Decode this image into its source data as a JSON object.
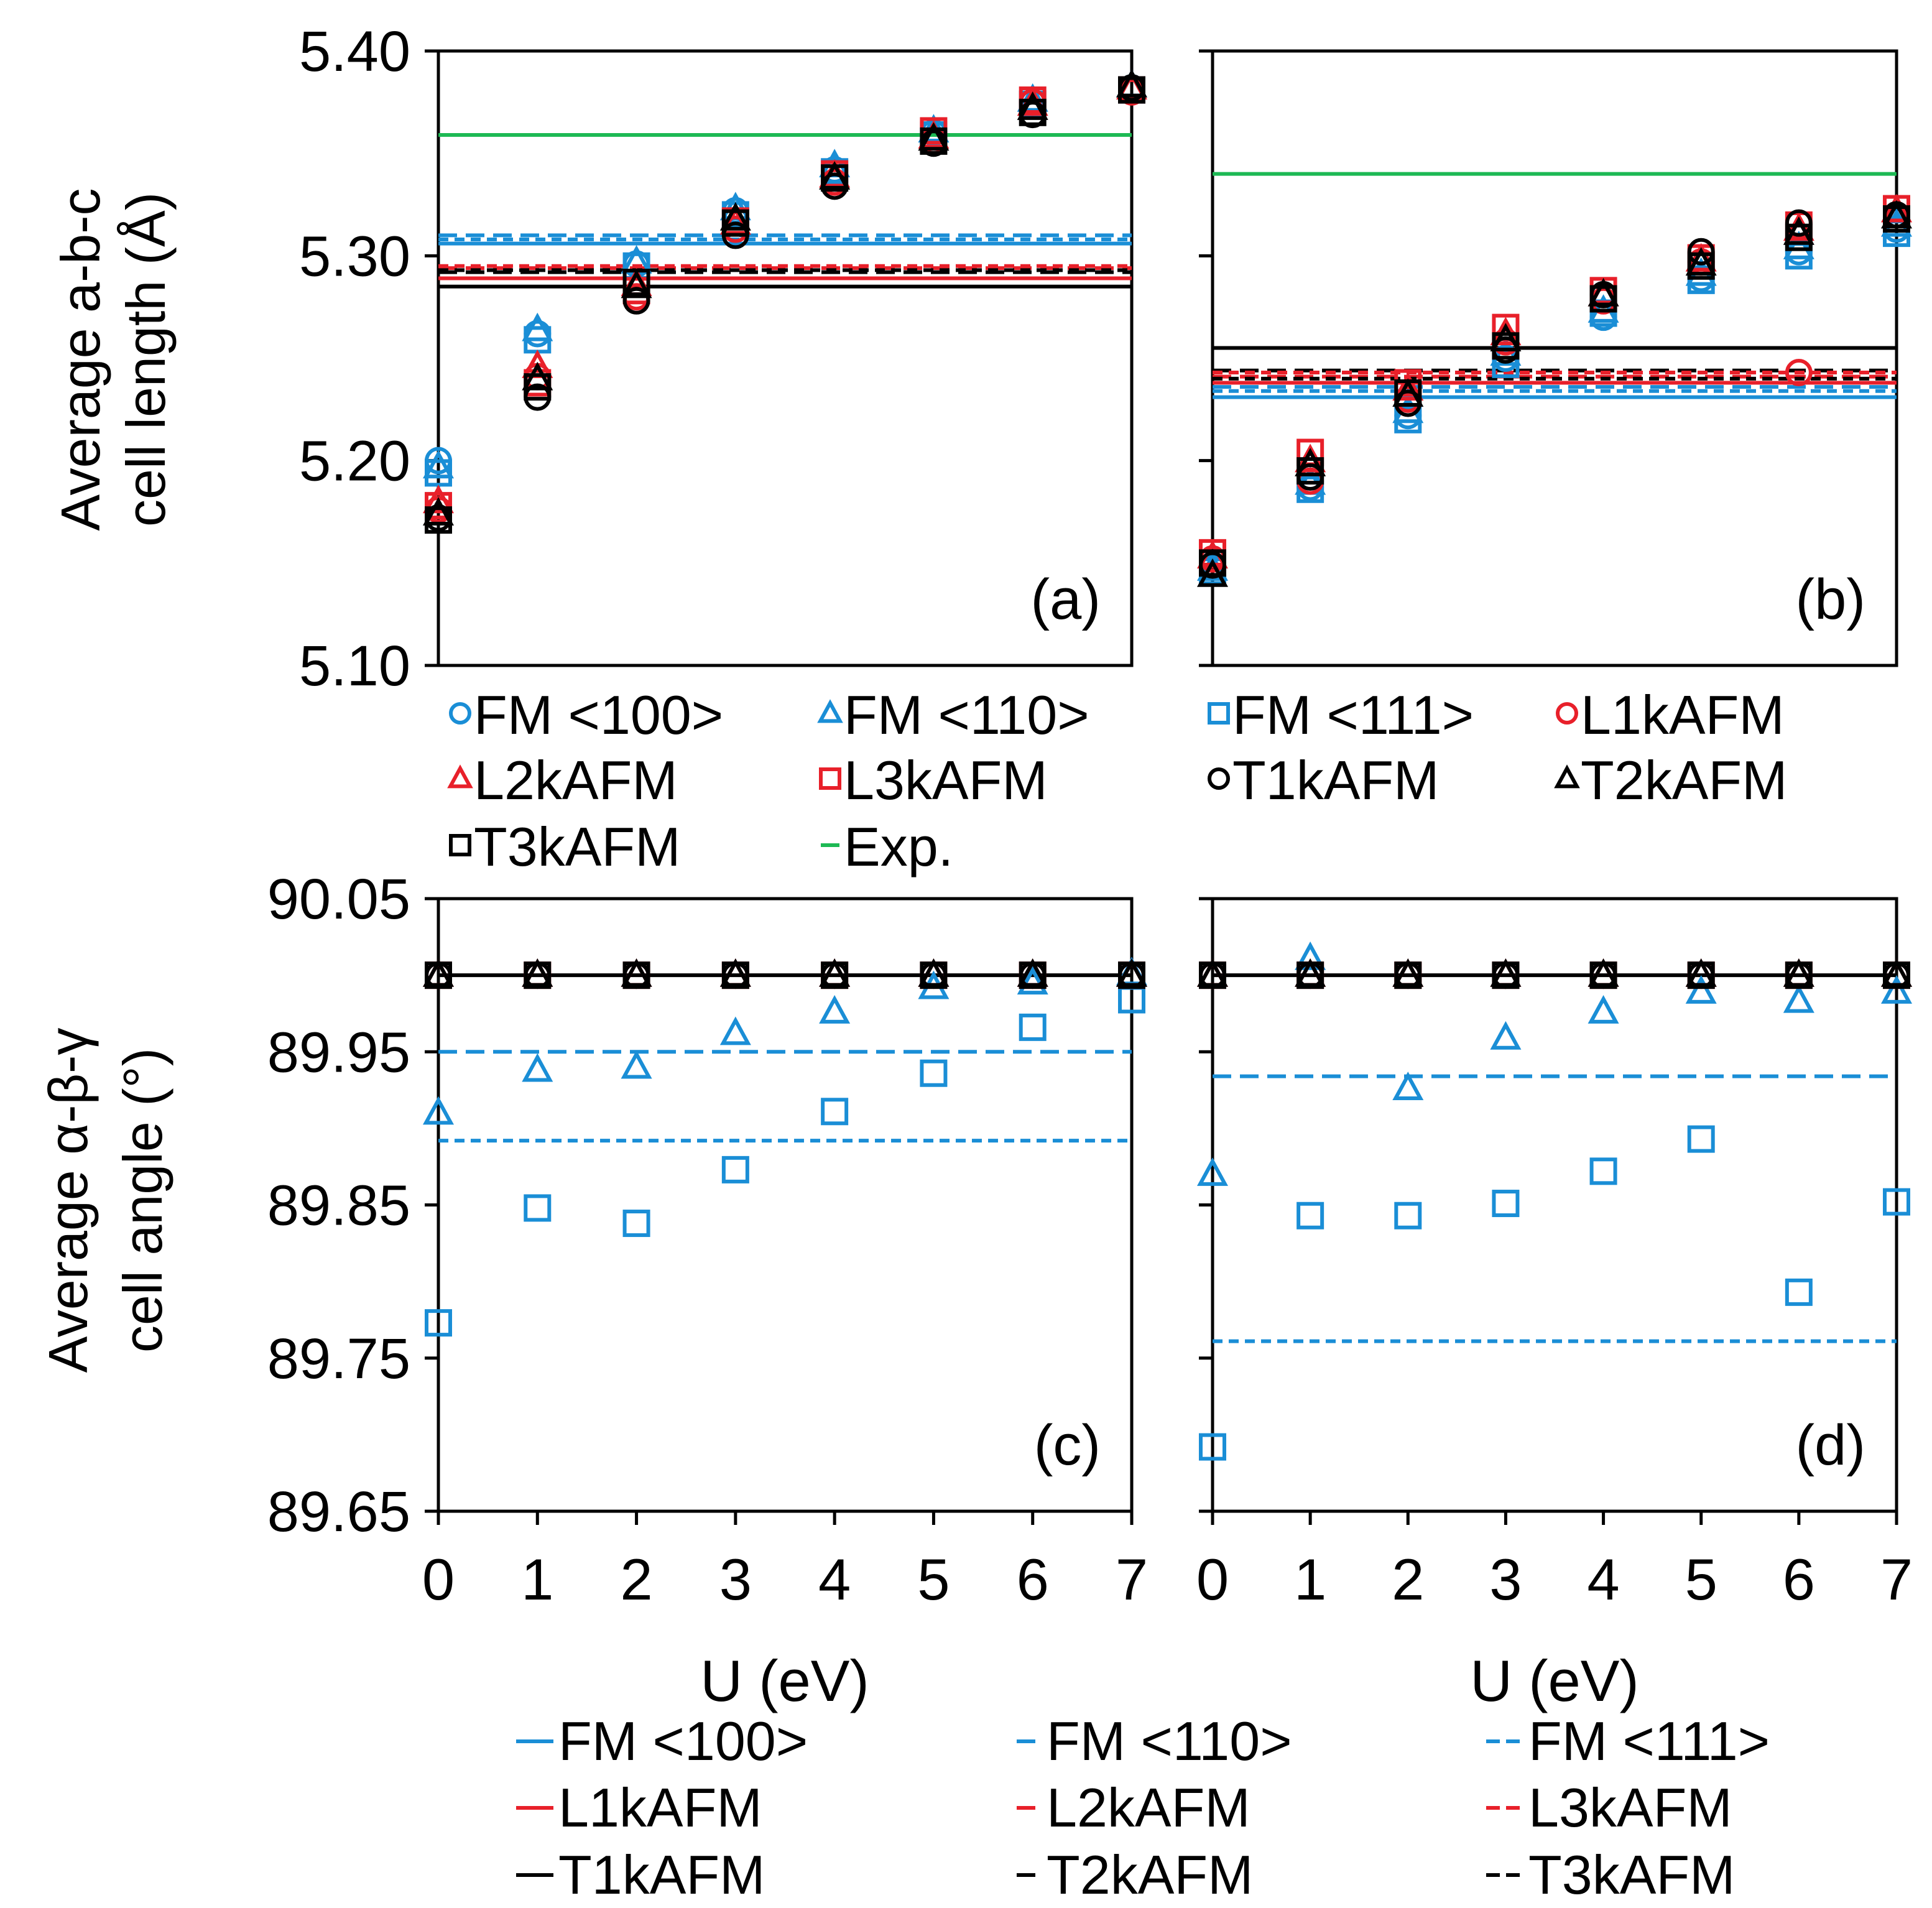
{
  "colors": {
    "blue": "#1A8ED6",
    "red": "#E8202A",
    "black": "#000000",
    "green": "#1DB954"
  },
  "x_ticks": [
    "0",
    "1",
    "2",
    "3",
    "4",
    "5",
    "6",
    "7"
  ],
  "x_label": "U (eV)",
  "ylabel_top": [
    "Average a-b-c",
    "cell length (Å)"
  ],
  "ylabel_bottom": [
    "Average α-β-γ",
    "cell angle (°)"
  ],
  "marker_legend": [
    {
      "label": "FM <100>",
      "marker": "circle",
      "color": "blue"
    },
    {
      "label": "FM <110>",
      "marker": "triangle",
      "color": "blue"
    },
    {
      "label": "FM <111>",
      "marker": "square",
      "color": "blue"
    },
    {
      "label": "L1kAFM",
      "marker": "circle",
      "color": "red"
    },
    {
      "label": "L2kAFM",
      "marker": "triangle",
      "color": "red"
    },
    {
      "label": "L3kAFM",
      "marker": "square",
      "color": "red"
    },
    {
      "label": "T1kAFM",
      "marker": "circle",
      "color": "black"
    },
    {
      "label": "T2kAFM",
      "marker": "triangle",
      "color": "black"
    },
    {
      "label": "T3kAFM",
      "marker": "square",
      "color": "black"
    },
    {
      "label": "Exp.",
      "marker": "line",
      "color": "green"
    }
  ],
  "line_legend": [
    {
      "label": "FM <100>",
      "style": "solid",
      "color": "blue"
    },
    {
      "label": "FM <110>",
      "style": "dash",
      "color": "blue"
    },
    {
      "label": "FM <111>",
      "style": "shortdash",
      "color": "blue"
    },
    {
      "label": "L1kAFM",
      "style": "solid",
      "color": "red"
    },
    {
      "label": "L2kAFM",
      "style": "dash",
      "color": "red"
    },
    {
      "label": "L3kAFM",
      "style": "shortdash",
      "color": "red"
    },
    {
      "label": "T1kAFM",
      "style": "solid",
      "color": "black"
    },
    {
      "label": "T2kAFM",
      "style": "dash",
      "color": "black"
    },
    {
      "label": "T3kAFM",
      "style": "shortdash",
      "color": "black"
    }
  ],
  "chart_data": [
    {
      "panel": "(a)",
      "type": "scatter",
      "xlabel": "",
      "ylabel": "Average a-b-c cell length (Å)",
      "ylim": [
        5.1,
        5.4
      ],
      "y_ticks": [
        "5.10",
        "5.20",
        "5.30",
        "5.40"
      ],
      "show_y_tick_labels": true,
      "x": [
        0,
        1,
        2,
        3,
        4,
        5,
        6,
        7
      ],
      "hlines": [
        {
          "name": "Exp.",
          "value": 5.359,
          "color": "green",
          "style": "solid"
        },
        {
          "name": "FM <110>",
          "value": 5.31,
          "color": "blue",
          "style": "dash"
        },
        {
          "name": "FM <111>",
          "value": 5.308,
          "color": "blue",
          "style": "shortdash"
        },
        {
          "name": "FM <100>",
          "value": 5.306,
          "color": "blue",
          "style": "solid"
        },
        {
          "name": "L3kAFM",
          "value": 5.295,
          "color": "red",
          "style": "shortdash"
        },
        {
          "name": "L2kAFM",
          "value": 5.294,
          "color": "red",
          "style": "dash"
        },
        {
          "name": "T3kAFM",
          "value": 5.293,
          "color": "black",
          "style": "shortdash"
        },
        {
          "name": "T2kAFM",
          "value": 5.292,
          "color": "black",
          "style": "dash"
        },
        {
          "name": "L1kAFM",
          "value": 5.289,
          "color": "red",
          "style": "solid"
        },
        {
          "name": "T1kAFM",
          "value": 5.285,
          "color": "black",
          "style": "solid"
        }
      ],
      "series": [
        {
          "name": "FM <100>",
          "marker": "circle",
          "color": "blue",
          "values": [
            5.2,
            5.262,
            5.296,
            5.322,
            5.342,
            5.36,
            5.375,
            5.382
          ]
        },
        {
          "name": "FM <110>",
          "marker": "triangle",
          "color": "blue",
          "values": [
            5.197,
            5.264,
            5.297,
            5.323,
            5.344,
            5.361,
            5.376,
            5.383
          ]
        },
        {
          "name": "FM <111>",
          "marker": "square",
          "color": "blue",
          "values": [
            5.194,
            5.259,
            5.295,
            5.32,
            5.341,
            5.359,
            5.374,
            5.381
          ]
        },
        {
          "name": "L1kAFM",
          "marker": "circle",
          "color": "red",
          "values": [
            5.176,
            5.241,
            5.28,
            5.313,
            5.336,
            5.356,
            5.375,
            5.38
          ]
        },
        {
          "name": "L2kAFM",
          "marker": "triangle",
          "color": "red",
          "values": [
            5.18,
            5.246,
            5.286,
            5.316,
            5.339,
            5.358,
            5.374,
            5.382
          ]
        },
        {
          "name": "L3kAFM",
          "marker": "square",
          "color": "red",
          "values": [
            5.178,
            5.238,
            5.283,
            5.317,
            5.34,
            5.361,
            5.376,
            5.381
          ]
        },
        {
          "name": "T1kAFM",
          "marker": "circle",
          "color": "black",
          "values": [
            5.172,
            5.231,
            5.278,
            5.31,
            5.334,
            5.355,
            5.369,
            5.382
          ]
        },
        {
          "name": "T2kAFM",
          "marker": "triangle",
          "color": "black",
          "values": [
            5.174,
            5.24,
            5.285,
            5.318,
            5.338,
            5.357,
            5.372,
            5.383
          ]
        },
        {
          "name": "T3kAFM",
          "marker": "square",
          "color": "black",
          "values": [
            5.171,
            5.236,
            5.287,
            5.316,
            5.338,
            5.356,
            5.37,
            5.381
          ]
        }
      ]
    },
    {
      "panel": "(b)",
      "type": "scatter",
      "xlabel": "",
      "ylabel": "",
      "ylim": [
        5.1,
        5.4
      ],
      "y_ticks": [
        "5.10",
        "5.20",
        "5.30",
        "5.40"
      ],
      "show_y_tick_labels": false,
      "x": [
        0,
        1,
        2,
        3,
        4,
        5,
        6,
        7
      ],
      "hlines": [
        {
          "name": "Exp.",
          "value": 5.34,
          "color": "green",
          "style": "solid"
        },
        {
          "name": "T1kAFM",
          "value": 5.255,
          "color": "black",
          "style": "solid"
        },
        {
          "name": "T2kAFM",
          "value": 5.244,
          "color": "black",
          "style": "dash"
        },
        {
          "name": "L3kAFM",
          "value": 5.243,
          "color": "red",
          "style": "shortdash"
        },
        {
          "name": "L2kAFM",
          "value": 5.241,
          "color": "red",
          "style": "dash"
        },
        {
          "name": "T3kAFM",
          "value": 5.24,
          "color": "black",
          "style": "shortdash"
        },
        {
          "name": "L1kAFM",
          "value": 5.238,
          "color": "red",
          "style": "solid"
        },
        {
          "name": "FM <110>",
          "value": 5.236,
          "color": "blue",
          "style": "dash"
        },
        {
          "name": "FM <111>",
          "value": 5.234,
          "color": "blue",
          "style": "shortdash"
        },
        {
          "name": "FM <100>",
          "value": 5.231,
          "color": "blue",
          "style": "solid"
        }
      ],
      "series": [
        {
          "name": "FM <100>",
          "marker": "circle",
          "color": "blue",
          "values": [
            5.148,
            5.187,
            5.222,
            5.25,
            5.27,
            5.289,
            5.302,
            5.313
          ]
        },
        {
          "name": "FM <110>",
          "marker": "triangle",
          "color": "blue",
          "values": [
            5.147,
            5.189,
            5.224,
            5.252,
            5.273,
            5.291,
            5.304,
            5.315
          ]
        },
        {
          "name": "FM <111>",
          "marker": "square",
          "color": "blue",
          "values": [
            5.146,
            5.186,
            5.22,
            5.247,
            5.272,
            5.288,
            5.3,
            5.311
          ]
        },
        {
          "name": "L1kAFM",
          "marker": "circle",
          "color": "red",
          "values": [
            5.152,
            5.19,
            5.23,
            5.258,
            5.278,
            5.297,
            5.243,
            5.32
          ]
        },
        {
          "name": "L2kAFM",
          "marker": "triangle",
          "color": "red",
          "values": [
            5.153,
            5.2,
            5.235,
            5.262,
            5.281,
            5.298,
            5.313,
            5.322
          ]
        },
        {
          "name": "L3kAFM",
          "marker": "square",
          "color": "red",
          "values": [
            5.155,
            5.204,
            5.238,
            5.265,
            5.283,
            5.299,
            5.315,
            5.323
          ]
        },
        {
          "name": "T1kAFM",
          "marker": "circle",
          "color": "black",
          "values": [
            5.149,
            5.192,
            5.228,
            5.254,
            5.281,
            5.302,
            5.316,
            5.32
          ]
        },
        {
          "name": "T2kAFM",
          "marker": "triangle",
          "color": "black",
          "values": [
            5.144,
            5.198,
            5.232,
            5.259,
            5.281,
            5.296,
            5.311,
            5.319
          ]
        },
        {
          "name": "T3kAFM",
          "marker": "square",
          "color": "black",
          "values": [
            5.15,
            5.195,
            5.233,
            5.256,
            5.279,
            5.295,
            5.309,
            5.318
          ]
        }
      ]
    },
    {
      "panel": "(c)",
      "type": "scatter",
      "xlabel": "U (eV)",
      "ylabel": "Average α-β-γ cell angle (°)",
      "ylim": [
        89.65,
        90.05
      ],
      "y_ticks": [
        "89.65",
        "89.75",
        "89.85",
        "89.95",
        "90.05"
      ],
      "show_y_tick_labels": true,
      "x": [
        0,
        1,
        2,
        3,
        4,
        5,
        6,
        7
      ],
      "hlines": [
        {
          "name": "FM <100>",
          "value": 90.0,
          "color": "black",
          "style": "solid"
        },
        {
          "name": "FM <110>",
          "value": 89.95,
          "color": "blue",
          "style": "dash"
        },
        {
          "name": "FM <111>",
          "value": 89.892,
          "color": "blue",
          "style": "shortdash"
        }
      ],
      "series": [
        {
          "name": "FM <100>",
          "marker": "circle",
          "color": "blue",
          "values": [
            90.0,
            90.0,
            90.0,
            90.0,
            90.0,
            90.0,
            90.0,
            90.0
          ]
        },
        {
          "name": "FM <110>",
          "marker": "triangle",
          "color": "blue",
          "values": [
            89.91,
            89.938,
            89.94,
            89.962,
            89.976,
            89.992,
            89.995,
            90.001
          ]
        },
        {
          "name": "FM <111>",
          "marker": "square",
          "color": "blue",
          "values": [
            89.773,
            89.848,
            89.838,
            89.873,
            89.911,
            89.936,
            89.966,
            89.984
          ]
        },
        {
          "name": "L1kAFM",
          "marker": "circle",
          "color": "red",
          "values": [
            90.0,
            90.0,
            90.0,
            90.0,
            90.0,
            90.0,
            90.0,
            90.0
          ]
        },
        {
          "name": "L2kAFM",
          "marker": "triangle",
          "color": "red",
          "values": [
            90.0,
            90.0,
            90.0,
            90.0,
            90.0,
            90.0,
            90.0,
            90.0
          ]
        },
        {
          "name": "L3kAFM",
          "marker": "square",
          "color": "red",
          "values": [
            90.0,
            90.0,
            90.0,
            90.0,
            90.0,
            90.0,
            90.0,
            90.0
          ]
        },
        {
          "name": "T1kAFM",
          "marker": "circle",
          "color": "black",
          "values": [
            90.0,
            90.0,
            90.0,
            90.0,
            90.0,
            90.0,
            90.0,
            90.0
          ]
        },
        {
          "name": "T2kAFM",
          "marker": "triangle",
          "color": "black",
          "values": [
            90.0,
            90.0,
            90.0,
            90.0,
            90.0,
            90.0,
            90.0,
            90.0
          ]
        },
        {
          "name": "T3kAFM",
          "marker": "square",
          "color": "black",
          "values": [
            90.0,
            90.0,
            90.0,
            90.0,
            90.0,
            90.0,
            90.0,
            90.0
          ]
        }
      ]
    },
    {
      "panel": "(d)",
      "type": "scatter",
      "xlabel": "U (eV)",
      "ylabel": "",
      "ylim": [
        89.65,
        90.05
      ],
      "y_ticks": [
        "89.65",
        "89.75",
        "89.85",
        "89.95",
        "90.05"
      ],
      "show_y_tick_labels": false,
      "x": [
        0,
        1,
        2,
        3,
        4,
        5,
        6,
        7
      ],
      "hlines": [
        {
          "name": "FM <100>",
          "value": 90.0,
          "color": "black",
          "style": "solid"
        },
        {
          "name": "FM <110>",
          "value": 89.934,
          "color": "blue",
          "style": "dash"
        },
        {
          "name": "FM <111>",
          "value": 89.761,
          "color": "blue",
          "style": "shortdash"
        }
      ],
      "series": [
        {
          "name": "FM <100>",
          "marker": "circle",
          "color": "blue",
          "values": [
            90.0,
            90.0,
            90.0,
            90.0,
            90.0,
            90.0,
            90.0,
            90.0
          ]
        },
        {
          "name": "FM <110>",
          "marker": "triangle",
          "color": "blue",
          "values": [
            89.87,
            90.011,
            89.926,
            89.959,
            89.976,
            89.989,
            89.983,
            89.989
          ]
        },
        {
          "name": "FM <111>",
          "marker": "square",
          "color": "blue",
          "values": [
            89.692,
            89.843,
            89.843,
            89.851,
            89.872,
            89.893,
            89.793,
            89.852
          ]
        },
        {
          "name": "L1kAFM",
          "marker": "circle",
          "color": "red",
          "values": [
            90.0,
            90.0,
            90.0,
            90.0,
            90.0,
            90.0,
            90.0,
            90.0
          ]
        },
        {
          "name": "L2kAFM",
          "marker": "triangle",
          "color": "red",
          "values": [
            90.0,
            90.0,
            90.0,
            90.0,
            90.0,
            90.0,
            90.0,
            90.0
          ]
        },
        {
          "name": "L3kAFM",
          "marker": "square",
          "color": "red",
          "values": [
            90.0,
            90.0,
            90.0,
            90.0,
            90.0,
            90.0,
            90.0,
            90.0
          ]
        },
        {
          "name": "T1kAFM",
          "marker": "circle",
          "color": "black",
          "values": [
            90.0,
            90.0,
            90.0,
            90.0,
            90.0,
            90.0,
            90.0,
            90.0
          ]
        },
        {
          "name": "T2kAFM",
          "marker": "triangle",
          "color": "black",
          "values": [
            90.0,
            90.0,
            90.0,
            90.0,
            90.0,
            90.0,
            90.0,
            90.0
          ]
        },
        {
          "name": "T3kAFM",
          "marker": "square",
          "color": "black",
          "values": [
            90.0,
            90.0,
            90.0,
            90.0,
            90.0,
            90.0,
            90.0,
            90.0
          ]
        }
      ]
    }
  ]
}
